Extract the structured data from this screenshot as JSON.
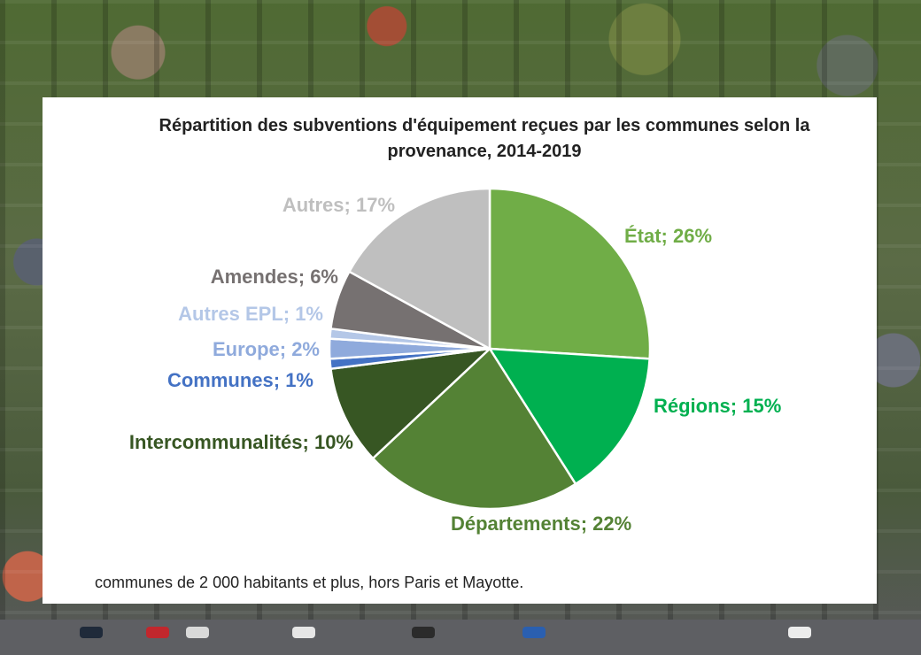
{
  "chart_data": {
    "type": "pie",
    "title_lines": [
      "Répartition des subventions d'équipement reçues par les communes selon la",
      "provenance, 2014-2019"
    ],
    "slices": [
      {
        "label": "État; 26%",
        "name": "État",
        "value": 26,
        "color": "#70ad47"
      },
      {
        "label": "Régions; 15%",
        "name": "Régions",
        "value": 15,
        "color": "#00b050"
      },
      {
        "label": "Départements; 22%",
        "name": "Départements",
        "value": 22,
        "color": "#548235"
      },
      {
        "label": "Intercommunalités; 10%",
        "name": "Intercommunalités",
        "value": 10,
        "color": "#375623"
      },
      {
        "label": "Communes; 1%",
        "name": "Communes",
        "value": 1,
        "color": "#4472c4"
      },
      {
        "label": "Europe; 2%",
        "name": "Europe",
        "value": 2,
        "color": "#8faadc"
      },
      {
        "label": "Autres EPL; 1%",
        "name": "Autres EPL",
        "value": 1,
        "color": "#b4c7e7"
      },
      {
        "label": "Amendes; 6%",
        "name": "Amendes",
        "value": 6,
        "color": "#767171"
      },
      {
        "label": "Autres; 17%",
        "name": "Autres",
        "value": 17,
        "color": "#bfbfbf"
      }
    ],
    "start_angle": "12 o'clock",
    "direction": "clockwise",
    "legend": "none (data labels)"
  },
  "footnote": "communes de 2 000 habitants et plus, hors Paris et Mayotte."
}
